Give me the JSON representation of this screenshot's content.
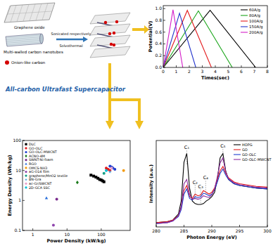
{
  "diagram": {
    "labels": {
      "graphene": "Graphene oxide",
      "mwcnt": "Multi-walled carbon nanotubes",
      "olc": "Onion-like carbon",
      "step1": "Sonicated respectively",
      "step2": "Solvothermal"
    },
    "title": "All-carbon Ultrafast Supercapacitor"
  },
  "chart_data": [
    {
      "type": "line",
      "x_label": "Times(sec)",
      "y_label": "Potential(V)",
      "xlim": [
        0,
        8
      ],
      "ylim": [
        0,
        1.05
      ],
      "xticks": [
        0,
        1,
        2,
        3,
        4,
        5,
        6,
        7,
        8
      ],
      "yticks": [
        {
          "value": 0,
          "label": "0.0"
        },
        {
          "value": 0.2,
          "label": "0.2"
        },
        {
          "value": 0.4,
          "label": "0.4"
        },
        {
          "value": 0.6,
          "label": "0.6"
        },
        {
          "value": 0.8,
          "label": "0.8"
        },
        {
          "value": 1,
          "label": "1.0"
        }
      ],
      "legend": "upper right",
      "series": [
        {
          "name": "60A/g",
          "color": "#000000",
          "x": [
            0,
            3.6,
            7.1
          ],
          "values": [
            0,
            0.97,
            0
          ]
        },
        {
          "name": "80A/g",
          "color": "#1aa51a",
          "x": [
            0,
            2.7,
            5.3
          ],
          "values": [
            0,
            0.96,
            0
          ]
        },
        {
          "name": "100A/g",
          "color": "#e31a1c",
          "x": [
            0,
            1.85,
            3.7
          ],
          "values": [
            0,
            0.97,
            0
          ]
        },
        {
          "name": "150A/g",
          "color": "#2233cc",
          "x": [
            0,
            1.25,
            2.5
          ],
          "values": [
            0,
            0.92,
            0
          ]
        },
        {
          "name": "200A/g",
          "color": "#d41cc8",
          "x": [
            0,
            0.75,
            1.5
          ],
          "values": [
            0,
            0.98,
            0
          ]
        }
      ]
    },
    {
      "type": "scatter",
      "log": true,
      "x_label": "Power Density (kW/kg)",
      "y_label": "Energy Density (Wh/kg)",
      "xlim": [
        0.5,
        700
      ],
      "ylim": [
        0.1,
        100
      ],
      "xticks": [
        1,
        10,
        100
      ],
      "yticks": [
        0.1,
        1,
        10,
        100
      ],
      "legend": "upper left",
      "series": [
        {
          "name": "DLC",
          "color": "#000000",
          "marker": "square",
          "x": [
            50,
            60,
            70,
            80,
            90,
            100,
            110,
            120
          ],
          "values": [
            7,
            6.5,
            6,
            5.5,
            5,
            4.8,
            4.5,
            4.2
          ]
        },
        {
          "name": "GO-OLC",
          "color": "#e31a1c",
          "marker": "circle",
          "x": [
            140,
            160,
            180
          ],
          "values": [
            12,
            11,
            10
          ]
        },
        {
          "name": "GO-OLC-MWCNT",
          "color": "#1f3fd0",
          "marker": "circle",
          "x": [
            180,
            200,
            220,
            250
          ],
          "values": [
            14,
            13,
            12,
            11
          ]
        },
        {
          "name": "ACNO-4M",
          "color": "#1a7a1a",
          "marker": "diamond",
          "x": [
            20
          ],
          "values": [
            4
          ]
        },
        {
          "name": "SWNT-Ni-foam",
          "color": "#7b2d8e",
          "marker": "circle",
          "x": [
            5
          ],
          "values": [
            1.1
          ]
        },
        {
          "name": "RGO",
          "color": "#2a6fdb",
          "marker": "triangle",
          "x": [
            2.5
          ],
          "values": [
            1.2
          ]
        },
        {
          "name": "OMCS-NH3",
          "color": "#f39c12",
          "marker": "circle",
          "x": [
            450
          ],
          "values": [
            10
          ]
        },
        {
          "name": "aG-O14 film",
          "color": "#8e44ad",
          "marker": "circle",
          "x": [
            4
          ],
          "values": [
            0.15
          ]
        },
        {
          "name": "graphene/MnO2 textile",
          "color": "#16a085",
          "marker": "circle",
          "x": [
            120
          ],
          "values": [
            8
          ]
        },
        {
          "name": "BN-Gra",
          "color": "#5dade2",
          "marker": "star",
          "x": [
            180
          ],
          "values": [
            9
          ]
        },
        {
          "name": "ac-Gr/SWCNT",
          "color": "#e8a0c8",
          "marker": "circle",
          "x": [
            200
          ],
          "values": [
            12
          ]
        },
        {
          "name": "2D-GCA SSC",
          "color": "#00bcd4",
          "marker": "circle",
          "x": [
            140
          ],
          "values": [
            10
          ]
        }
      ]
    },
    {
      "type": "line",
      "x_label": "Photon Energy (eV)",
      "y_label": "Intensity (a.u.)",
      "xlim": [
        280,
        300
      ],
      "ylim": [
        0,
        1
      ],
      "xticks": [
        280,
        285,
        290,
        295,
        300
      ],
      "tick_labels": "x",
      "legend": "upper right",
      "x": [
        280,
        282,
        283,
        284,
        284.5,
        285,
        285.5,
        286,
        286.5,
        287,
        287.5,
        288,
        288.5,
        289,
        289.5,
        290,
        290.5,
        291,
        291.5,
        292,
        292.5,
        293,
        294,
        295,
        296,
        297,
        298,
        300
      ],
      "series": [
        {
          "name": "HOPG",
          "color": "#000000",
          "values": [
            0.05,
            0.06,
            0.08,
            0.15,
            0.3,
            0.75,
            0.85,
            0.45,
            0.3,
            0.27,
            0.26,
            0.26,
            0.27,
            0.3,
            0.32,
            0.35,
            0.4,
            0.55,
            0.8,
            0.85,
            0.65,
            0.55,
            0.5,
            0.48,
            0.47,
            0.46,
            0.45,
            0.44
          ]
        },
        {
          "name": "GO",
          "color": "#e31a1c",
          "values": [
            0.05,
            0.06,
            0.08,
            0.13,
            0.22,
            0.42,
            0.48,
            0.35,
            0.33,
            0.38,
            0.36,
            0.37,
            0.42,
            0.4,
            0.38,
            0.4,
            0.45,
            0.55,
            0.65,
            0.7,
            0.62,
            0.57,
            0.52,
            0.5,
            0.49,
            0.48,
            0.47,
            0.46
          ]
        },
        {
          "name": "GO-OLC",
          "color": "#1f3fd0",
          "values": [
            0.04,
            0.05,
            0.07,
            0.12,
            0.2,
            0.38,
            0.44,
            0.33,
            0.31,
            0.35,
            0.34,
            0.35,
            0.39,
            0.38,
            0.36,
            0.38,
            0.43,
            0.52,
            0.62,
            0.67,
            0.6,
            0.55,
            0.5,
            0.48,
            0.47,
            0.46,
            0.45,
            0.44
          ]
        },
        {
          "name": "GO-OLC-MWCNT",
          "color": "#8e2c9e",
          "values": [
            0.04,
            0.05,
            0.07,
            0.13,
            0.24,
            0.5,
            0.55,
            0.38,
            0.32,
            0.33,
            0.32,
            0.33,
            0.36,
            0.35,
            0.34,
            0.37,
            0.44,
            0.58,
            0.74,
            0.8,
            0.64,
            0.56,
            0.51,
            0.49,
            0.48,
            0.47,
            0.46,
            0.45
          ]
        }
      ],
      "annotations": [
        {
          "text": "C₁",
          "x": 285.5,
          "y": 0.9
        },
        {
          "text": "C₂",
          "x": 287.0,
          "y": 0.5
        },
        {
          "text": "C₃",
          "x": 288.0,
          "y": 0.45
        },
        {
          "text": "C₄",
          "x": 288.9,
          "y": 0.55
        },
        {
          "text": "C₅",
          "x": 292.0,
          "y": 0.92
        }
      ]
    }
  ]
}
